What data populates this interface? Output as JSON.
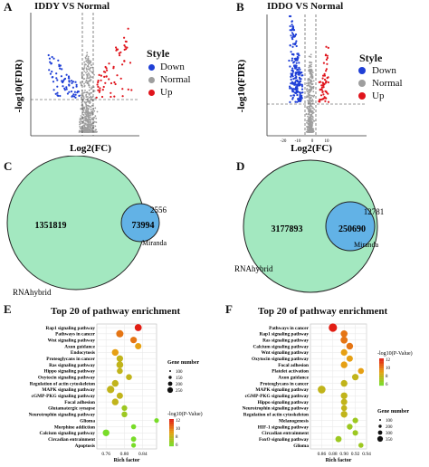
{
  "panels": {
    "A": {
      "letter": "A",
      "title": "IDDY VS Normal",
      "ylabel": "-log10(FDR)",
      "xlabel": "Log2(FC)",
      "legend": {
        "title": "Style",
        "items": [
          "Down",
          "Normal",
          "Up"
        ]
      }
    },
    "B": {
      "letter": "B",
      "title": "IDDO VS Normal",
      "ylabel": "-log10(FDR)",
      "xlabel": "Log2(FC)",
      "legend": {
        "title": "Style",
        "items": [
          "Down",
          "Normal",
          "Up"
        ]
      },
      "xticks": [
        "-20",
        "-10",
        "0",
        "10"
      ]
    },
    "C": {
      "letter": "C",
      "big_value": "1351819",
      "overlap_value": "73994",
      "small_value": "2556",
      "big_label": "RNAhybrid",
      "small_label": "Miranda"
    },
    "D": {
      "letter": "D",
      "big_value": "3177893",
      "overlap_value": "250690",
      "small_value": "12781",
      "big_label": "RNAhybrid",
      "small_label": "Miranda"
    },
    "E": {
      "letter": "E",
      "title": "Top 20 of pathway enrichment",
      "xlabel": "Rich factor",
      "size_legend_title": "Gene number",
      "size_legend_values": [
        "100",
        "150",
        "200",
        "250"
      ],
      "color_legend_title": "-log10(P-Value)",
      "color_legend_values": [
        "12",
        "10",
        "8",
        "6"
      ],
      "xticks": [
        "0.76",
        "0.80",
        "0.84"
      ]
    },
    "F": {
      "letter": "F",
      "title": "Top 20 of pathway enrichment",
      "xlabel": "Rich factor",
      "size_legend_title": "Gene number",
      "size_legend_values": [
        "100",
        "200",
        "300",
        "350"
      ],
      "color_legend_title": "-log10(P-Value)",
      "color_legend_values": [
        "12",
        "10",
        "8",
        "6"
      ],
      "xticks": [
        "0.86",
        "0.88",
        "0.90",
        "0.92",
        "0.94"
      ]
    }
  },
  "colors": {
    "down": "#1f3fd6",
    "normal": "#9e9e9e",
    "up": "#e0141c",
    "venn_big": "#a3e8c0",
    "venn_small": "#62b2e6"
  },
  "chart_data": [
    {
      "type": "scatter",
      "panel": "E",
      "title": "Top 20 of pathway enrichment",
      "xlabel": "Rich factor",
      "xlim": [
        0.74,
        0.87
      ],
      "categories": [
        "Rap1 signaling pathway",
        "Pathways in cancer",
        "Wnt signaling pathway",
        "Axon guidance",
        "Endocytosis",
        "Proteoglycans in cancer",
        "Ras signaling pathway",
        "Hippo signaling pathway",
        "Oxytocin signaling pathway",
        "Regulation of actin cytoskeleton",
        "MAPK signaling pathway",
        "cGMP-PKG signaling pathway",
        "Focal adhesion",
        "Glutamatergic synapse",
        "Neurotrophin signaling pathway",
        "Glioma",
        "Morphine addiction",
        "Calcium signaling pathway",
        "Circadian entrainment",
        "Apoptosis"
      ],
      "x": [
        0.83,
        0.79,
        0.82,
        0.83,
        0.78,
        0.79,
        0.79,
        0.79,
        0.81,
        0.78,
        0.77,
        0.79,
        0.78,
        0.8,
        0.8,
        0.87,
        0.82,
        0.76,
        0.82,
        0.82
      ],
      "gene_number": [
        220,
        240,
        180,
        160,
        190,
        180,
        210,
        140,
        140,
        190,
        260,
        160,
        190,
        110,
        120,
        60,
        80,
        200,
        90,
        60
      ],
      "neg_log10_p": [
        12,
        10,
        10,
        9,
        9,
        8,
        8,
        8,
        8,
        8,
        8,
        8,
        8,
        7,
        7,
        6,
        6,
        6,
        6,
        6
      ]
    },
    {
      "type": "scatter",
      "panel": "F",
      "title": "Top 20 of pathway enrichment",
      "xlabel": "Rich factor",
      "xlim": [
        0.84,
        0.94
      ],
      "categories": [
        "Pathways in cancer",
        "Rap1 signaling pathway",
        "Ras signaling pathway",
        "Calcium signaling pathway",
        "Wnt signaling pathway",
        "Oxytocin signaling pathway",
        "Focal adhesion",
        "Platelet activation",
        "Axon guidance",
        "Proteoglycans in cancer",
        "MAPK signaling pathway",
        "cGMP-PKG signaling pathway",
        "Hippo signaling pathway",
        "Neurotrophin signaling pathway",
        "Regulation of actin cytoskeleton",
        "Melanogenesis",
        "HIF-1 signaling pathway",
        "Circadian entrainment",
        "FoxO signaling pathway",
        "Glioma"
      ],
      "x": [
        0.88,
        0.9,
        0.9,
        0.91,
        0.9,
        0.91,
        0.9,
        0.93,
        0.92,
        0.9,
        0.86,
        0.9,
        0.9,
        0.9,
        0.9,
        0.92,
        0.91,
        0.92,
        0.89,
        0.93
      ],
      "gene_number": [
        360,
        210,
        220,
        200,
        180,
        170,
        200,
        140,
        180,
        200,
        290,
        200,
        160,
        140,
        200,
        110,
        120,
        110,
        150,
        80
      ],
      "neg_log10_p": [
        12,
        10,
        10,
        10,
        9,
        9,
        9,
        9,
        8,
        8,
        8,
        8,
        8,
        8,
        8,
        7,
        7,
        7,
        7,
        7
      ]
    }
  ]
}
